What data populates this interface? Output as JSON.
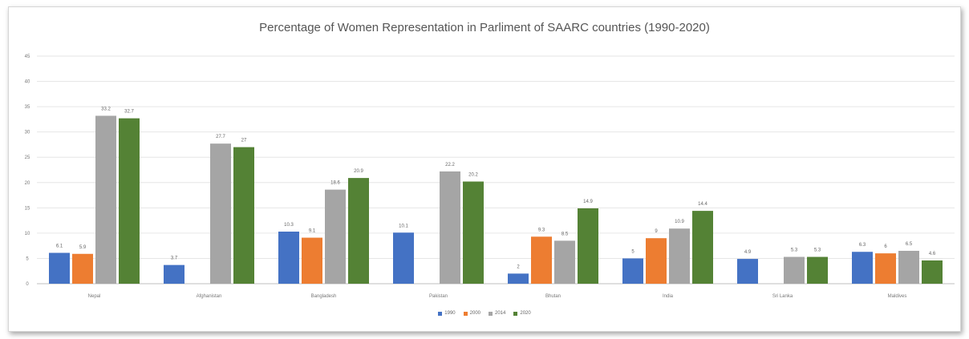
{
  "chart_data": {
    "type": "bar",
    "title": "Percentage of Women Representation  in Parliment of SAARC countries (1990-2020)",
    "xlabel": "",
    "ylabel": "",
    "ylim": [
      0,
      45
    ],
    "yticks": [
      0,
      5,
      10,
      15,
      20,
      25,
      30,
      35,
      40,
      45
    ],
    "grid": true,
    "legend_position": "bottom",
    "categories": [
      "Nepal",
      "Afghanistan",
      "Bangladesh",
      "Pakistan",
      "Bhutan",
      "India",
      "Sri Lanka",
      "Maldives"
    ],
    "series": [
      {
        "name": "1990",
        "color": "#4472c4",
        "values": [
          6.1,
          3.7,
          10.3,
          10.1,
          2,
          5,
          4.9,
          6.3
        ],
        "labels": [
          "6.1",
          "3.7",
          "10.3",
          "10.1",
          "2",
          "5",
          "4.9",
          "6.3"
        ]
      },
      {
        "name": "2000",
        "color": "#ed7d31",
        "values": [
          5.9,
          null,
          9.1,
          null,
          9.3,
          9,
          null,
          6
        ],
        "labels": [
          "5.9",
          "",
          "9.1",
          "",
          "9.3",
          "9",
          "",
          "6"
        ]
      },
      {
        "name": "2014",
        "color": "#a5a5a5",
        "values": [
          33.2,
          27.7,
          18.6,
          22.2,
          8.5,
          10.9,
          5.3,
          6.5
        ],
        "labels": [
          "33.2",
          "27.7",
          "18.6",
          "22.2",
          "8.5",
          "10.9",
          "5.3",
          "6.5"
        ]
      },
      {
        "name": "2020",
        "color": "#548235",
        "values": [
          32.7,
          27,
          20.9,
          20.2,
          14.9,
          14.4,
          5.3,
          4.6
        ],
        "labels": [
          "32.7",
          "27",
          "20.9",
          "20.2",
          "14.9",
          "14.4",
          "5.3",
          "4.6"
        ]
      }
    ]
  }
}
